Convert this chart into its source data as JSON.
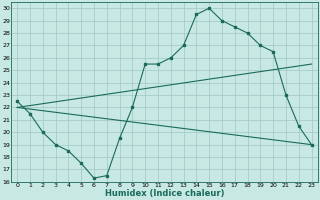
{
  "title": "",
  "xlabel": "Humidex (Indice chaleur)",
  "xlim": [
    -0.5,
    23.5
  ],
  "ylim": [
    16,
    30.5
  ],
  "yticks": [
    16,
    17,
    18,
    19,
    20,
    21,
    22,
    23,
    24,
    25,
    26,
    27,
    28,
    29,
    30
  ],
  "xticks": [
    0,
    1,
    2,
    3,
    4,
    5,
    6,
    7,
    8,
    9,
    10,
    11,
    12,
    13,
    14,
    15,
    16,
    17,
    18,
    19,
    20,
    21,
    22,
    23
  ],
  "bg_color": "#c8e8e4",
  "line_color": "#1a6b5a",
  "grid_color": "#a0c8c4",
  "line1_x": [
    0,
    1,
    2,
    3,
    4,
    5,
    6,
    7,
    8,
    9,
    10,
    11,
    12,
    13,
    14,
    15,
    16,
    17,
    18,
    19,
    20,
    21,
    22,
    23
  ],
  "line1_y": [
    22.5,
    21.5,
    20,
    19,
    18.5,
    17.5,
    16.3,
    16.5,
    19.5,
    22.0,
    25.5,
    25.5,
    26,
    27,
    29.5,
    30,
    29,
    28.5,
    28,
    27,
    26.5,
    23,
    20.5,
    19
  ],
  "line2_x": [
    0,
    23
  ],
  "line2_y": [
    22.0,
    19.0
  ],
  "line3_x": [
    0,
    23
  ],
  "line3_y": [
    22.0,
    25.5
  ]
}
